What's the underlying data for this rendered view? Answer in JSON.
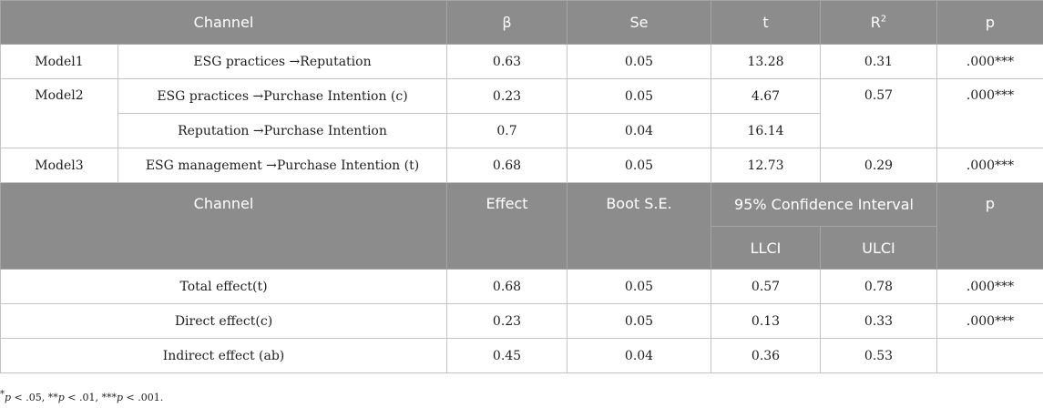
{
  "table1": {
    "headers": {
      "channel": "Channel",
      "beta": "β",
      "se": "Se",
      "t": "t",
      "r2_base": "R",
      "r2_sup": "2",
      "p": "p"
    },
    "rows": [
      {
        "model": "Model1",
        "channel": "ESG practices →Reputation",
        "beta": "0.63",
        "se": "0.05",
        "t": "13.28",
        "r2": "0.31",
        "p": ".000***"
      },
      {
        "model": "Model2",
        "channel": "ESG practices →Purchase Intention (c)",
        "beta": "0.23",
        "se": "0.05",
        "t": "4.67",
        "r2": "0.57",
        "p": ".000***"
      },
      {
        "model": "",
        "channel": "Reputation →Purchase Intention",
        "beta": "0.7",
        "se": "0.04",
        "t": "16.14",
        "r2": "",
        "p": ""
      },
      {
        "model": "Model3",
        "channel": "ESG management →Purchase Intention (t)",
        "beta": "0.68",
        "se": "0.05",
        "t": "12.73",
        "r2": "0.29",
        "p": ".000***"
      }
    ]
  },
  "table2": {
    "headers": {
      "channel": "Channel",
      "effect": "Effect",
      "boot_se": "Boot S.E.",
      "ci": "95% Confidence Interval",
      "llci": "LLCI",
      "ulci": "ULCI",
      "p": "p"
    },
    "rows": [
      {
        "channel": "Total effect(t)",
        "effect": "0.68",
        "boot_se": "0.05",
        "llci": "0.57",
        "ulci": "0.78",
        "p": ".000***"
      },
      {
        "channel": "Direct effect(c)",
        "effect": "0.23",
        "boot_se": "0.05",
        "llci": "0.13",
        "ulci": "0.33",
        "p": ".000***"
      },
      {
        "channel": "Indirect effect (ab)",
        "effect": "0.45",
        "boot_se": "0.04",
        "llci": "0.36",
        "ulci": "0.53",
        "p": ""
      }
    ]
  },
  "footnote": {
    "s1": "*",
    "p1": "p",
    "t1": " < .05, **",
    "p2": "p",
    "t2": " < .01, ***",
    "p3": "p",
    "t3": " < .001."
  }
}
